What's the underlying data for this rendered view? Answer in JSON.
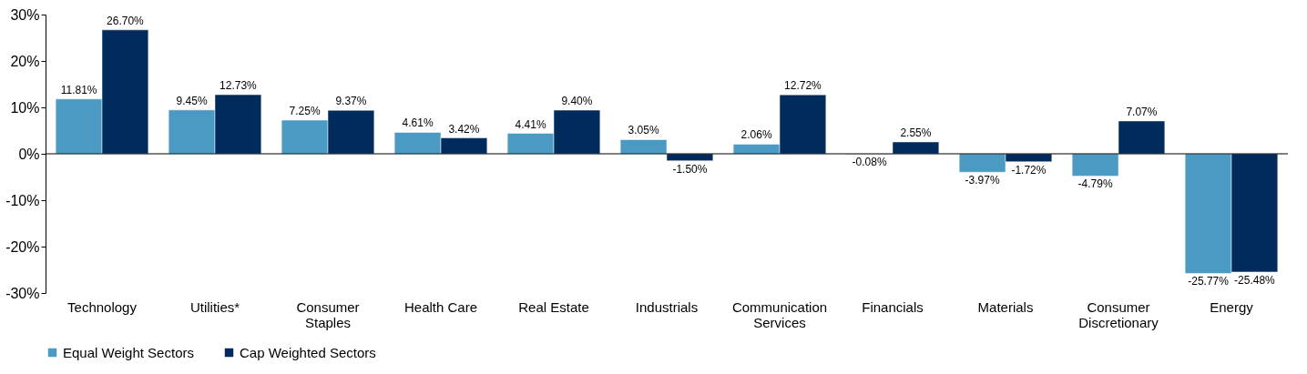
{
  "chart_data": {
    "type": "bar",
    "categories": [
      "Technology",
      "Utilities*",
      "Consumer Staples",
      "Health Care",
      "Real Estate",
      "Industrials",
      "Communication Services",
      "Financials",
      "Materials",
      "Consumer Discretionary",
      "Energy"
    ],
    "series": [
      {
        "name": "Equal Weight Sectors",
        "color": "#4a9ac4",
        "values": [
          11.81,
          9.45,
          7.25,
          4.61,
          4.41,
          3.05,
          2.06,
          -0.08,
          -3.97,
          -4.79,
          -25.77
        ],
        "value_labels": [
          "11.81%",
          "9.45%",
          "7.25%",
          "4.61%",
          "4.41%",
          "3.05%",
          "2.06%",
          "-0.08%",
          "-3.97%",
          "-4.79%",
          "-25.77%"
        ]
      },
      {
        "name": "Cap Weighted Sectors",
        "color": "#002b5c",
        "values": [
          26.7,
          12.73,
          9.37,
          3.42,
          9.4,
          -1.5,
          12.72,
          2.55,
          -1.72,
          7.07,
          -25.48
        ],
        "value_labels": [
          "26.70%",
          "12.73%",
          "9.37%",
          "3.42%",
          "9.40%",
          "-1.50%",
          "12.72%",
          "2.55%",
          "-1.72%",
          "7.07%",
          "-25.48%"
        ]
      }
    ],
    "ylim": [
      -30,
      30
    ],
    "yticks": [
      {
        "value": -30,
        "label": "-30%"
      },
      {
        "value": -20,
        "label": "-20%"
      },
      {
        "value": -10,
        "label": "-10%"
      },
      {
        "value": 0,
        "label": "0%"
      },
      {
        "value": 10,
        "label": "10%"
      },
      {
        "value": 20,
        "label": "20%"
      },
      {
        "value": 30,
        "label": "30%"
      }
    ],
    "legend": "bottom"
  }
}
